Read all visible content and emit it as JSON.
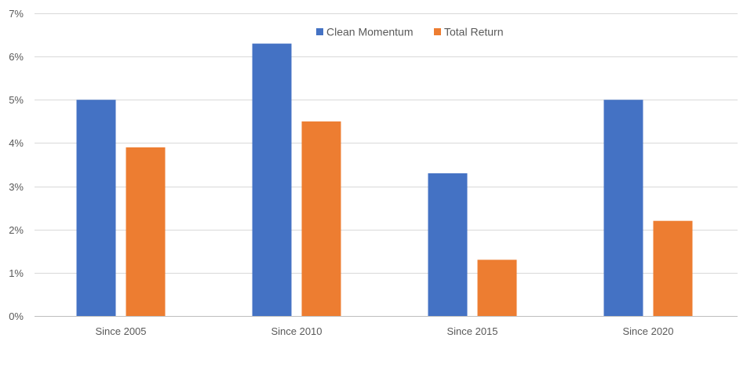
{
  "chart_data": {
    "type": "bar",
    "title": "",
    "xlabel": "",
    "ylabel": "",
    "categories": [
      "Since 2005",
      "Since 2010",
      "Since 2015",
      "Since 2020"
    ],
    "series": [
      {
        "name": "Clean Momentum",
        "color": "#4472C4",
        "values": [
          5.0,
          6.3,
          3.3,
          5.0
        ]
      },
      {
        "name": "Total Return",
        "color": "#ED7D31",
        "values": [
          3.9,
          4.5,
          1.3,
          2.2
        ]
      }
    ],
    "ylim": [
      0,
      7
    ],
    "yticks": [
      0,
      1,
      2,
      3,
      4,
      5,
      6,
      7
    ],
    "ytick_labels": [
      "0%",
      "1%",
      "2%",
      "3%",
      "4%",
      "5%",
      "6%",
      "7%"
    ],
    "grid": true,
    "gridline_color": "#D9D9D9",
    "legend_position": "top"
  }
}
